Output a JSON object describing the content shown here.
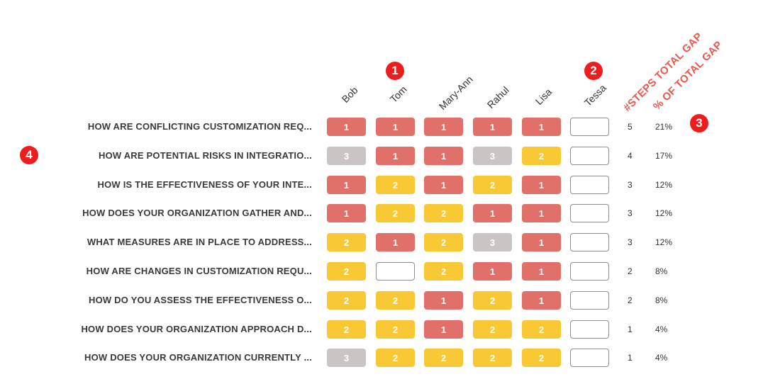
{
  "columns": [
    "Bob",
    "Tom",
    "Mary-Ann",
    "Rahul",
    "Lisa",
    "Tessa"
  ],
  "metric_headers": {
    "steps": "#STEPS TOTAL GAP",
    "percent": "% OF TOTAL GAP"
  },
  "markers": [
    "1",
    "2",
    "3",
    "4"
  ],
  "rows": [
    {
      "question": "HOW ARE CONFLICTING CUSTOMIZATION REQ...",
      "cells": [
        "1",
        "1",
        "1",
        "1",
        "1",
        ""
      ],
      "steps": "5",
      "percent": "21%"
    },
    {
      "question": "HOW ARE POTENTIAL RISKS IN INTEGRATIO...",
      "cells": [
        "3",
        "1",
        "1",
        "3",
        "2",
        ""
      ],
      "steps": "4",
      "percent": "17%"
    },
    {
      "question": "HOW IS THE EFFECTIVENESS OF YOUR INTE...",
      "cells": [
        "1",
        "2",
        "1",
        "2",
        "1",
        ""
      ],
      "steps": "3",
      "percent": "12%"
    },
    {
      "question": "HOW DOES YOUR ORGANIZATION GATHER AND...",
      "cells": [
        "1",
        "2",
        "2",
        "1",
        "1",
        ""
      ],
      "steps": "3",
      "percent": "12%"
    },
    {
      "question": "WHAT MEASURES ARE IN PLACE TO ADDRESS...",
      "cells": [
        "2",
        "1",
        "2",
        "3",
        "1",
        ""
      ],
      "steps": "3",
      "percent": "12%"
    },
    {
      "question": "HOW ARE CHANGES IN CUSTOMIZATION REQU...",
      "cells": [
        "2",
        "",
        "2",
        "1",
        "1",
        ""
      ],
      "steps": "2",
      "percent": "8%"
    },
    {
      "question": "HOW DO YOU ASSESS THE EFFECTIVENESS O...",
      "cells": [
        "2",
        "2",
        "1",
        "2",
        "1",
        ""
      ],
      "steps": "2",
      "percent": "8%"
    },
    {
      "question": "HOW DOES YOUR ORGANIZATION APPROACH D...",
      "cells": [
        "2",
        "2",
        "1",
        "2",
        "2",
        ""
      ],
      "steps": "1",
      "percent": "4%"
    },
    {
      "question": "HOW DOES YOUR ORGANIZATION CURRENTLY ...",
      "cells": [
        "3",
        "2",
        "2",
        "2",
        "2",
        ""
      ],
      "steps": "1",
      "percent": "4%"
    }
  ],
  "colors": {
    "level_1": "#e2706a",
    "level_2": "#f9c935",
    "level_3": "#cbc4c4",
    "empty": "#ffffff",
    "metric_header": "#e65a4f",
    "marker": "#ee1c1c"
  }
}
